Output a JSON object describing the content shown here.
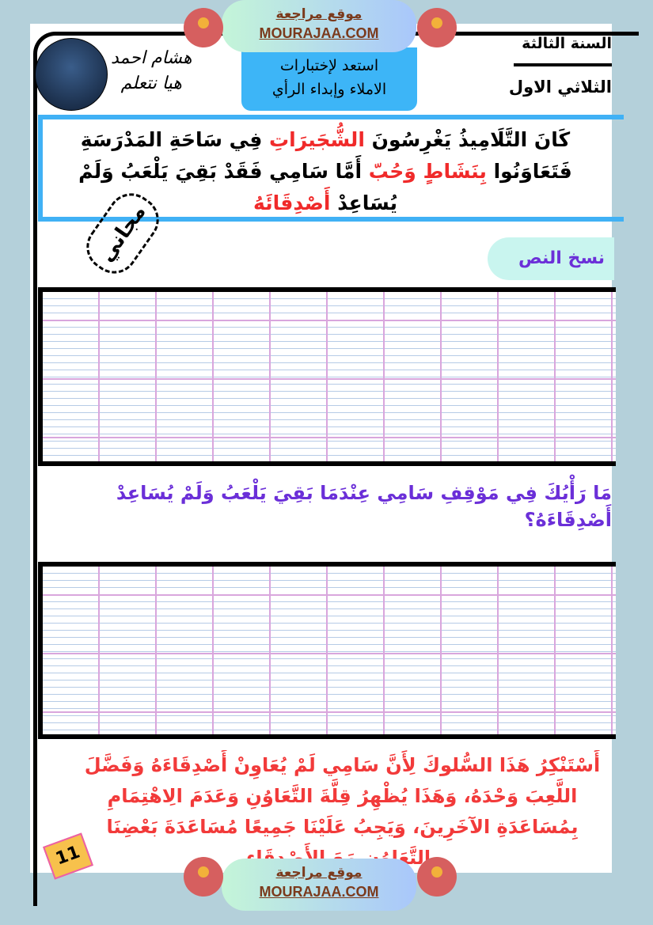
{
  "watermark": {
    "arabic": "موقع مراجعة",
    "site": "MOURAJAA.COM"
  },
  "header": {
    "grade": "السنة الثالثة",
    "term": "الثلاثي الاول",
    "author_line1": "هشام احمد",
    "author_line2": "هيا نتعلم",
    "topic_line1": "استعد لإختبارات",
    "topic_line2": "الاملاء وإبداء الرأي"
  },
  "passage": {
    "line1": [
      {
        "t": "كَانَ التَّلَامِيذُ يَغْرِسُونَ ",
        "c": "black"
      },
      {
        "t": "الشُّجَيرَاتِ",
        "c": "red"
      },
      {
        "t": " فِي سَاحَةِ المَدْرَسَةِ",
        "c": "black"
      }
    ],
    "line2": [
      {
        "t": "فَتَعَاوَنُوا ",
        "c": "black"
      },
      {
        "t": "بِنَشَاطٍ وَحُبّ",
        "c": "red"
      },
      {
        "t": " أَمَّا سَامِي فَقَدْ بَقِيَ يَلْعَبُ وَلَمْ",
        "c": "black"
      }
    ],
    "line3": [
      {
        "t": "يُسَاعِدْ ",
        "c": "black"
      },
      {
        "t": "أَصْدِقَائَهُ",
        "c": "red"
      }
    ]
  },
  "stamp": "مجاني",
  "copy_label": "نسخ النص",
  "question": "مَا رَأْيُكَ فِي مَوْقِفِ سَامِي عِنْدَمَا بَقِيَ يَلْعَبُ وَلَمْ يُسَاعِدْ أَصْدِقَاءَهُ؟",
  "answer": "أَسْتَنْكِرُ هَذَا السُّلوكَ لِأَنَّ سَامِي لَمْ يُعَاوِنْ أَصْدِقَاءَهُ وَفَضَّلَ اللَّعِبَ وَحْدَهُ، وَهَذَا يُظْهِرُ قِلَّةَ التَّعَاوُنِ وَعَدَمَ الِاهْتِمَامِ بِمُسَاعَدَةِ الآخَرِينَ، وَيَجِبُ عَلَيْنَا جَمِيعًا مُسَاعَدَةَ بَعْضِنَا بِالتَّعَاوُنِ مَعَ الأَصْدِقَاءِ",
  "page_number": "11",
  "colors": {
    "accent_blue": "#40b1f5",
    "red": "#f02a2a",
    "purple": "#6b2fd8",
    "background": "#b4d0da"
  }
}
